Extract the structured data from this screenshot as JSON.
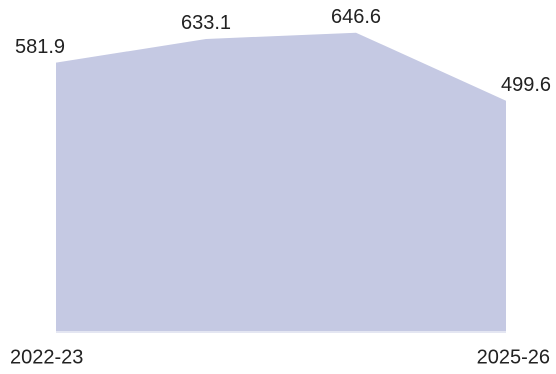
{
  "chart_data": {
    "type": "area",
    "categories": [
      "2022-23",
      null,
      null,
      "2025-26"
    ],
    "values": [
      581.9,
      633.1,
      646.6,
      499.6
    ],
    "color": "#c5c9e3",
    "ylim": [
      0,
      700
    ]
  }
}
